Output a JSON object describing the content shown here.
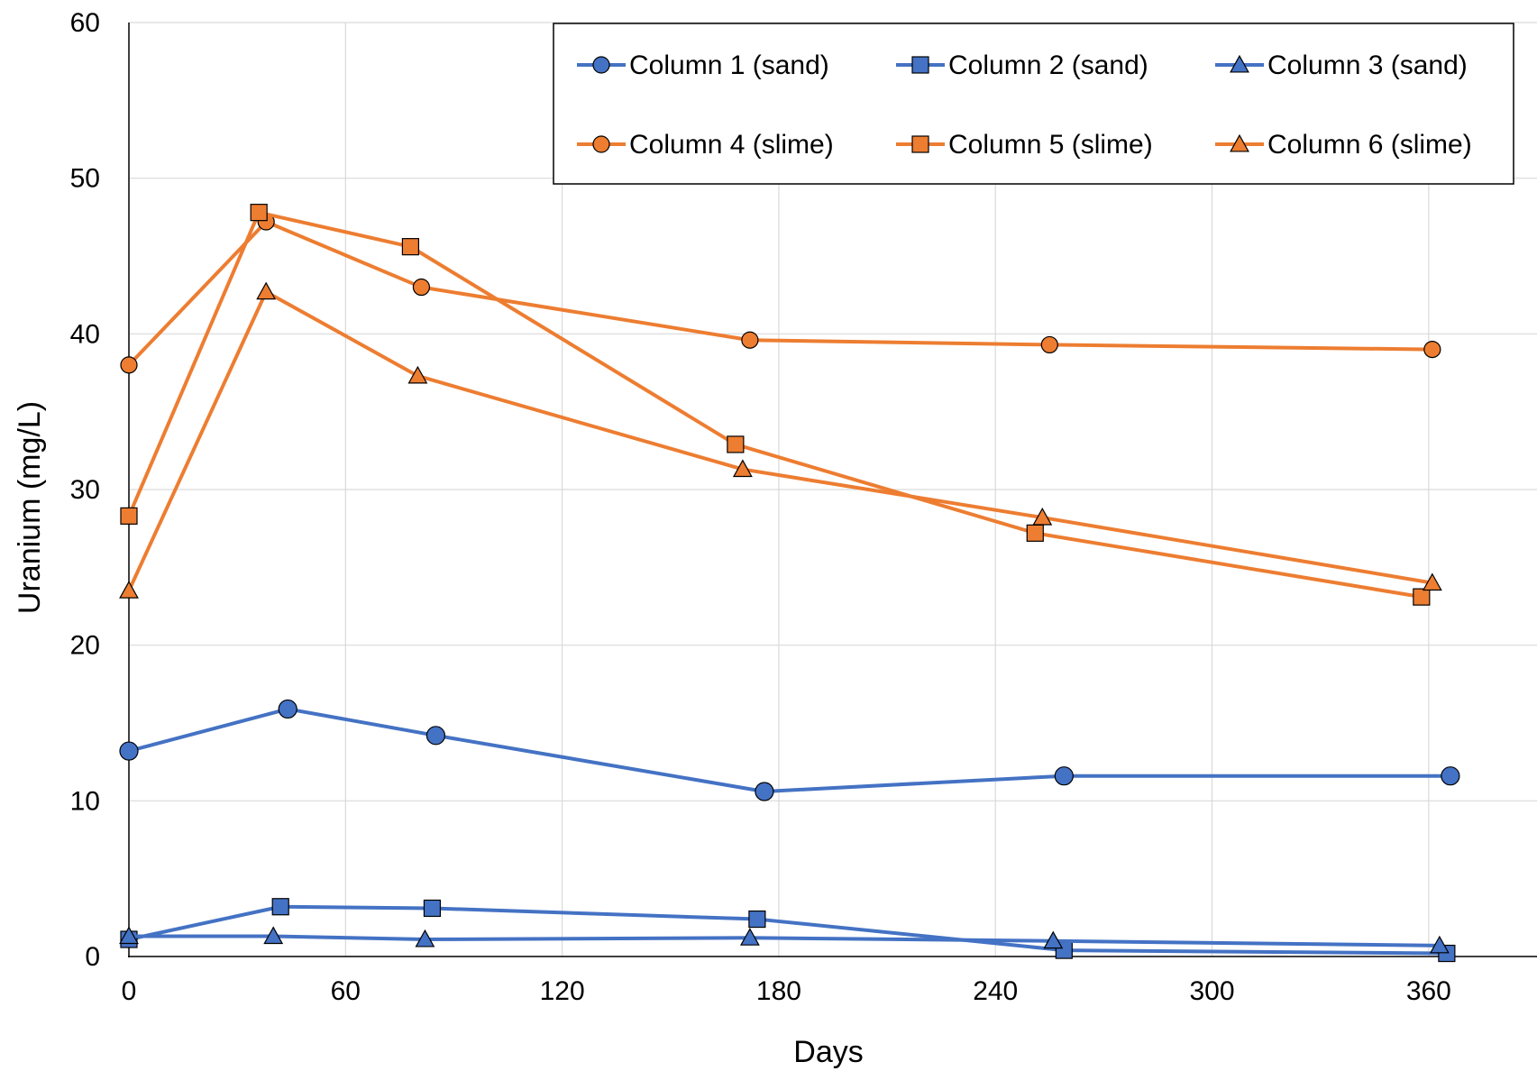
{
  "chart_data": {
    "type": "line",
    "title": "",
    "xlabel": "Days",
    "ylabel": "Uranium (mg/L)",
    "xlim": [
      0,
      390
    ],
    "ylim": [
      0,
      60
    ],
    "xticks": [
      0,
      60,
      120,
      180,
      240,
      300,
      360
    ],
    "yticks": [
      0,
      10,
      20,
      30,
      40,
      50,
      60
    ],
    "grid": true,
    "legend_position": "top-right",
    "series": [
      {
        "name": "Column 1 (sand)",
        "color": "#4472C4",
        "marker": "circle",
        "x": [
          0,
          44,
          85,
          176,
          259,
          366
        ],
        "y": [
          13.2,
          15.9,
          14.2,
          10.6,
          11.6,
          11.6
        ]
      },
      {
        "name": "Column 2 (sand)",
        "color": "#4472C4",
        "marker": "square",
        "x": [
          0,
          42,
          84,
          174,
          259,
          365
        ],
        "y": [
          1.1,
          3.2,
          3.1,
          2.4,
          0.4,
          0.2
        ]
      },
      {
        "name": "Column 3 (sand)",
        "color": "#4472C4",
        "marker": "triangle",
        "x": [
          0,
          40,
          82,
          172,
          256,
          363
        ],
        "y": [
          1.3,
          1.3,
          1.1,
          1.2,
          1.0,
          0.7
        ]
      },
      {
        "name": "Column 4 (slime)",
        "color": "#ED7D31",
        "marker": "circle",
        "x": [
          0,
          38,
          81,
          172,
          255,
          361
        ],
        "y": [
          38.0,
          47.2,
          43.0,
          39.6,
          39.3,
          39.0
        ]
      },
      {
        "name": "Column 5 (slime)",
        "color": "#ED7D31",
        "marker": "square",
        "x": [
          0,
          36,
          78,
          168,
          251,
          358
        ],
        "y": [
          28.3,
          47.8,
          45.6,
          32.9,
          27.2,
          23.1
        ]
      },
      {
        "name": "Column 6 (slime)",
        "color": "#ED7D31",
        "marker": "triangle",
        "x": [
          0,
          38,
          80,
          170,
          253,
          361
        ],
        "y": [
          23.5,
          42.7,
          37.3,
          31.3,
          28.2,
          24.0
        ]
      }
    ]
  }
}
